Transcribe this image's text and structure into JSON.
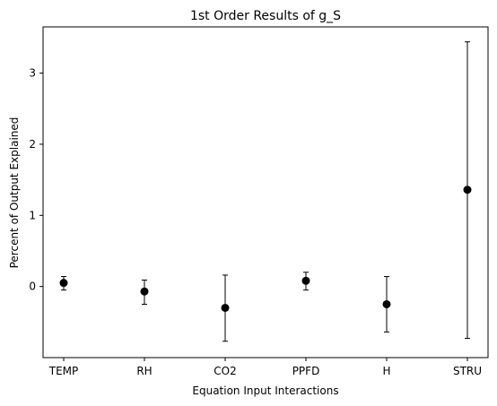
{
  "chart_data": {
    "type": "scatter",
    "title": "1st Order Results of g_S",
    "xlabel": "Equation Input Interactions",
    "ylabel": "Percent of Output Explained",
    "categories": [
      "TEMP",
      "RH",
      "CO2",
      "PPFD",
      "H",
      "STRU"
    ],
    "series": [
      {
        "values": [
          0.05,
          -0.07,
          -0.3,
          0.08,
          -0.25,
          1.36
        ],
        "error_low": [
          -0.05,
          -0.25,
          -0.77,
          -0.05,
          -0.64,
          -0.73
        ],
        "error_high": [
          0.14,
          0.09,
          0.16,
          0.2,
          0.14,
          3.44
        ]
      }
    ],
    "yticks": [
      0,
      1,
      2,
      3
    ],
    "ylim": [
      -1.0,
      3.65
    ],
    "grid": false,
    "marker_color": "#000000"
  }
}
